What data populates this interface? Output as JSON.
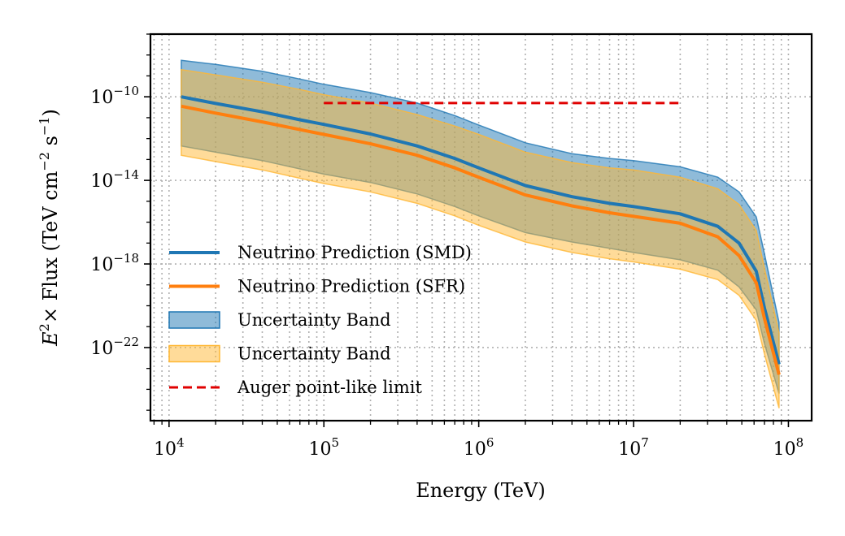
{
  "chart_data": {
    "type": "line",
    "xscale": "log",
    "yscale": "log",
    "xlim_exp": [
      3.88,
      8.15
    ],
    "ylim_exp": [
      -25.5,
      -7.0
    ],
    "xlabel": "Energy (TeV)",
    "ylabel": {
      "prefix": "E",
      "prefix_sup": "2",
      "mid": "× Flux (TeV cm",
      "sup1": "−2",
      "mid2": " s",
      "sup2": "−1",
      "end": ")"
    },
    "x_ticks": [
      {
        "base": "10",
        "exp": "4",
        "value": 10000
      },
      {
        "base": "10",
        "exp": "5",
        "value": 100000
      },
      {
        "base": "10",
        "exp": "6",
        "value": 1000000
      },
      {
        "base": "10",
        "exp": "7",
        "value": 10000000
      },
      {
        "base": "10",
        "exp": "8",
        "value": 100000000
      }
    ],
    "y_ticks": [
      {
        "base": "10",
        "exp": "−10",
        "value": 1e-10
      },
      {
        "base": "10",
        "exp": "−14",
        "value": 1e-14
      },
      {
        "base": "10",
        "exp": "−18",
        "value": 1e-18
      },
      {
        "base": "10",
        "exp": "−22",
        "value": 1e-22
      }
    ],
    "grid": true,
    "legend_position": "lower-left",
    "energy_tev": [
      12000,
      20000,
      40000,
      70000,
      100000,
      200000,
      400000,
      700000,
      1000000,
      2000000,
      4000000,
      7000000,
      10000000,
      20000000,
      35000000,
      48000000,
      62000000,
      70000000,
      87000000
    ],
    "series": [
      {
        "name": "Neutrino Prediction (SMD)",
        "color": "#1f77b4",
        "kind": "line",
        "values_log10": [
          -10.0,
          -10.32,
          -10.72,
          -11.1,
          -11.32,
          -11.78,
          -12.35,
          -12.95,
          -13.4,
          -14.25,
          -14.78,
          -15.1,
          -15.25,
          -15.6,
          -16.2,
          -17.0,
          -18.35,
          -20.1,
          -22.8
        ]
      },
      {
        "name": "Neutrino Prediction (SFR)",
        "color": "#ff7f0e",
        "kind": "line",
        "values_log10": [
          -10.45,
          -10.78,
          -11.2,
          -11.57,
          -11.8,
          -12.25,
          -12.8,
          -13.4,
          -13.85,
          -14.7,
          -15.22,
          -15.55,
          -15.72,
          -16.05,
          -16.7,
          -17.6,
          -18.9,
          -20.6,
          -23.3
        ]
      },
      {
        "name": "Uncertainty Band",
        "color": "#1f77b4",
        "kind": "band",
        "upper_log10": [
          -8.25,
          -8.45,
          -8.78,
          -9.15,
          -9.4,
          -9.8,
          -10.3,
          -10.9,
          -11.35,
          -12.2,
          -12.72,
          -12.95,
          -13.05,
          -13.35,
          -13.85,
          -14.55,
          -15.75,
          -17.5,
          -20.8
        ],
        "lower_log10": [
          -12.35,
          -12.65,
          -13.05,
          -13.45,
          -13.7,
          -14.1,
          -14.65,
          -15.25,
          -15.7,
          -16.5,
          -16.95,
          -17.25,
          -17.45,
          -17.8,
          -18.3,
          -19.1,
          -20.2,
          -21.8,
          -24.2
        ]
      },
      {
        "name": "Uncertainty Band",
        "color": "#ffb733",
        "kind": "band",
        "upper_log10": [
          -8.7,
          -8.95,
          -9.3,
          -9.65,
          -9.9,
          -10.3,
          -10.85,
          -11.4,
          -11.8,
          -12.65,
          -13.15,
          -13.4,
          -13.5,
          -13.85,
          -14.4,
          -15.15,
          -16.4,
          -18.2,
          -21.3
        ],
        "lower_log10": [
          -12.8,
          -13.1,
          -13.5,
          -13.9,
          -14.15,
          -14.55,
          -15.1,
          -15.7,
          -16.15,
          -16.95,
          -17.45,
          -17.75,
          -17.9,
          -18.25,
          -18.75,
          -19.5,
          -20.7,
          -22.3,
          -24.9
        ]
      },
      {
        "name": "Auger point-like limit",
        "color": "#e00000",
        "kind": "dashed",
        "x": [
          100000,
          20000000
        ],
        "values_log10": [
          -10.3,
          -10.3
        ]
      }
    ]
  }
}
